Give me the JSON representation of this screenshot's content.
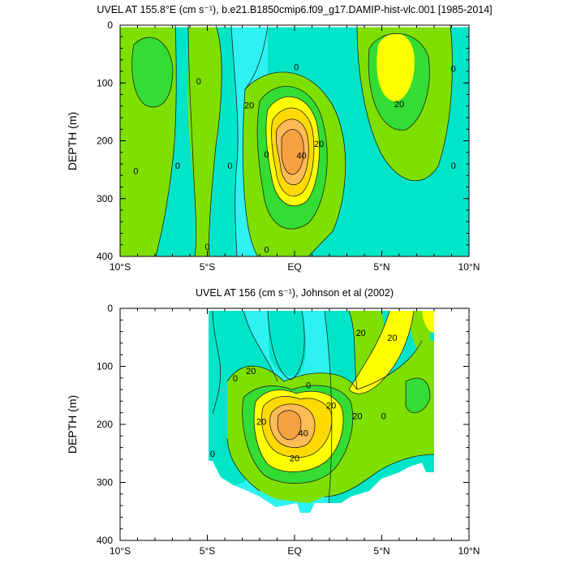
{
  "colors": {
    "cyan": "#2ef2f2",
    "aqua": "#00e5c8",
    "ltgreen": "#33dd33",
    "green": "#7ee000",
    "yellow": "#ffff00",
    "gold": "#ffd900",
    "lorange": "#ffbb55",
    "orange": "#f7a040",
    "line": "#222222",
    "missing": "#ffffff"
  },
  "chart_data": [
    {
      "type": "heatmap",
      "title": "UVEL AT 155.8°E (cm s⁻¹), b.e21.B1850cmip6.f09_g17.DAMIP-hist-vlc.001 [1985-2014]",
      "ylabel": "DEPTH (m)",
      "xlim": [
        -10,
        10
      ],
      "ylim": [
        400,
        0
      ],
      "x_ticks": [
        "10°S",
        "5°S",
        "EQ",
        "5°N",
        "10°N"
      ],
      "y_ticks": [
        "0",
        "100",
        "200",
        "300",
        "400"
      ],
      "contour_labels": [
        {
          "text": "0",
          "x": -5.5,
          "y": 97
        },
        {
          "text": "20",
          "x": -2.6,
          "y": 138
        },
        {
          "text": "0",
          "x": 0.1,
          "y": 72
        },
        {
          "text": "40",
          "x": 0.4,
          "y": 225
        },
        {
          "text": "20",
          "x": 1.4,
          "y": 205
        },
        {
          "text": "20",
          "x": 6.0,
          "y": 136
        },
        {
          "text": "0",
          "x": 9.1,
          "y": 75
        },
        {
          "text": "0",
          "x": -9.1,
          "y": 252
        },
        {
          "text": "0",
          "x": -6.7,
          "y": 243
        },
        {
          "text": "0",
          "x": -3.7,
          "y": 243
        },
        {
          "text": "0",
          "x": -1.6,
          "y": 223
        },
        {
          "text": "0",
          "x": -5.0,
          "y": 383
        },
        {
          "text": "0",
          "x": -1.6,
          "y": 388
        },
        {
          "text": "0",
          "x": 9.1,
          "y": 243
        }
      ]
    },
    {
      "type": "heatmap",
      "title": "UVEL AT 156 (cm s⁻¹), Johnson et al (2002)",
      "ylabel": "DEPTH (m)",
      "xlim": [
        -10,
        10
      ],
      "ylim": [
        400,
        0
      ],
      "x_ticks": [
        "10°S",
        "5°S",
        "EQ",
        "5°N",
        "10°N"
      ],
      "y_ticks": [
        "0",
        "100",
        "200",
        "300",
        "400"
      ],
      "contour_labels": [
        {
          "text": "20",
          "x": 3.8,
          "y": 42
        },
        {
          "text": "20",
          "x": 5.6,
          "y": 50
        },
        {
          "text": "20",
          "x": -2.5,
          "y": 108
        },
        {
          "text": "0",
          "x": 0.8,
          "y": 132
        },
        {
          "text": "0",
          "x": -3.4,
          "y": 120
        },
        {
          "text": "20",
          "x": 2.1,
          "y": 167
        },
        {
          "text": "20",
          "x": 3.6,
          "y": 185
        },
        {
          "text": "0",
          "x": 5.1,
          "y": 185
        },
        {
          "text": "20",
          "x": -1.9,
          "y": 195
        },
        {
          "text": "40",
          "x": 0.5,
          "y": 215
        },
        {
          "text": "20",
          "x": 0.0,
          "y": 258
        },
        {
          "text": "0",
          "x": -4.7,
          "y": 250
        }
      ]
    }
  ]
}
